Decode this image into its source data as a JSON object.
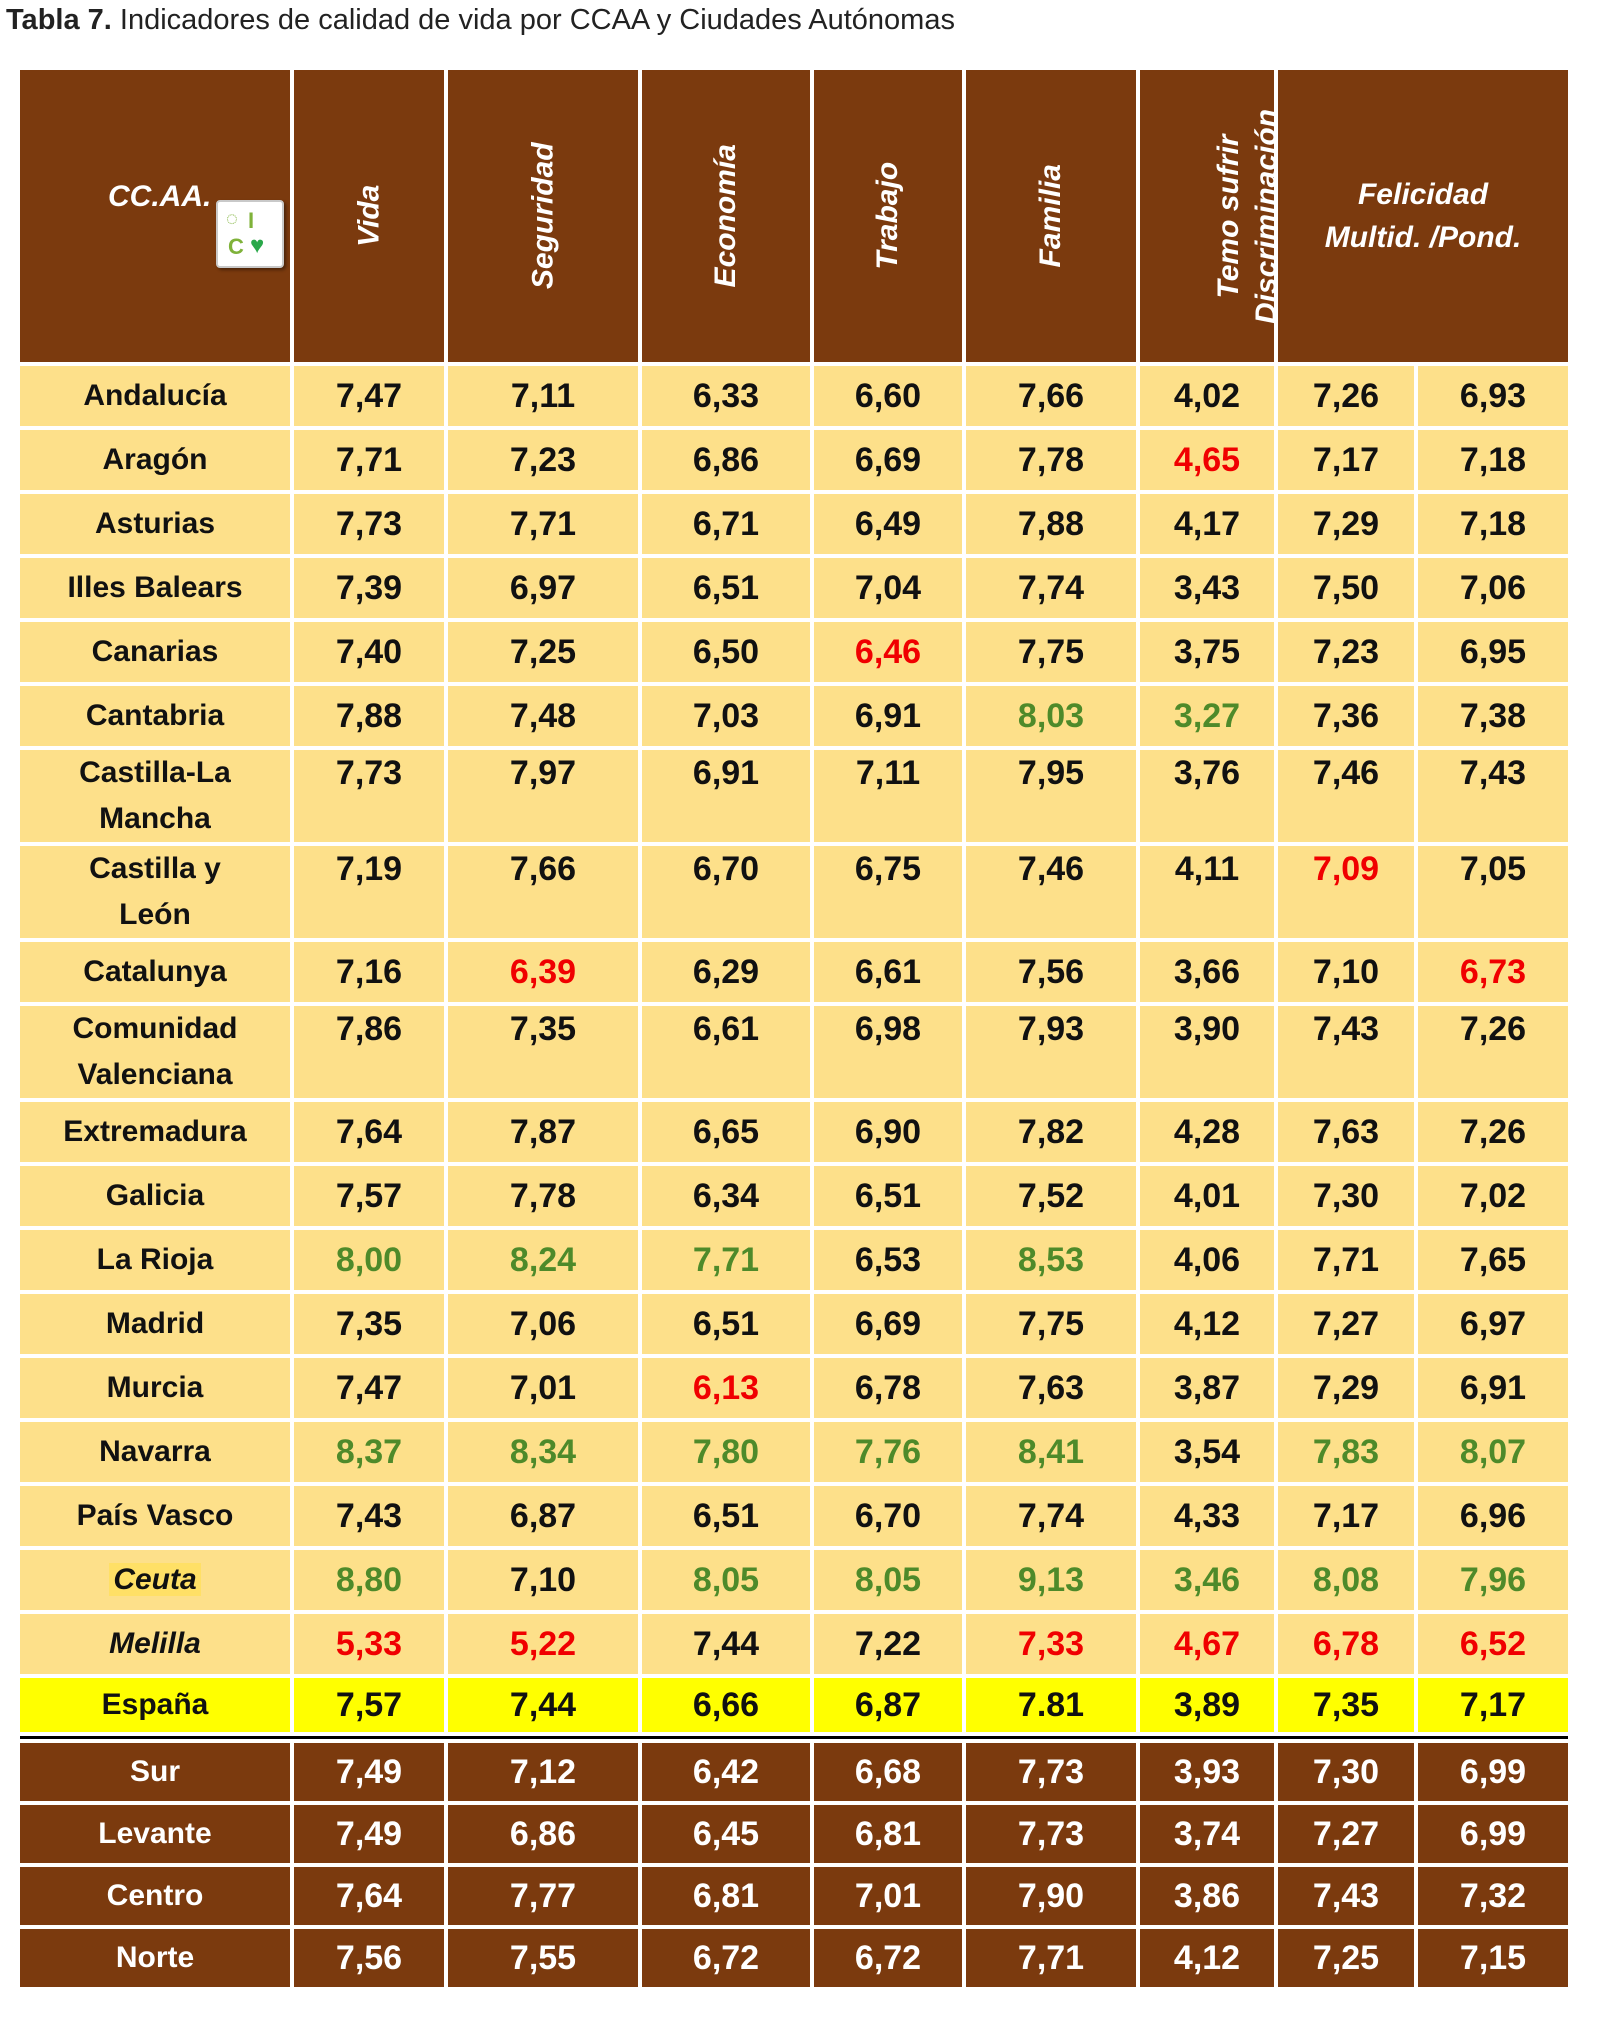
{
  "caption": {
    "bold": "Tabla 7.",
    "text": " Indicadores de calidad de vida por CCAA y Ciudades Autónomas"
  },
  "headers": {
    "ccaa": "CC.AA.",
    "vida": "Vida",
    "seguridad": "Seguridad",
    "economia": "Economía",
    "trabajo": "Trabajo",
    "familia": "Familia",
    "temo_l1": "Temo sufrir",
    "temo_l2": "Discriminación",
    "felicidad_l1": "Felicidad",
    "felicidad_l2": "Multid. /Pond."
  },
  "logo": {
    "l1": "◌",
    "l2": "I",
    "l3": "C",
    "l4": "♥"
  },
  "colors": {
    "header_bg": "#7b3a0e",
    "row_bg": "#fde08a",
    "total_bg": "#ffff00",
    "red": "#f00000",
    "green": "#4e8a2a"
  },
  "rows": [
    {
      "name": "Andalucía",
      "vals": [
        "7,47",
        "7,11",
        "6,33",
        "6,60",
        "7,66",
        "4,02",
        "7,26",
        "6,93"
      ],
      "colors": [
        "",
        "",
        "",
        "",
        "",
        "",
        "",
        ""
      ]
    },
    {
      "name": "Aragón",
      "vals": [
        "7,71",
        "7,23",
        "6,86",
        "6,69",
        "7,78",
        "4,65",
        "7,17",
        "7,18"
      ],
      "colors": [
        "",
        "",
        "",
        "",
        "",
        "red",
        "",
        ""
      ]
    },
    {
      "name": "Asturias",
      "vals": [
        "7,73",
        "7,71",
        "6,71",
        "6,49",
        "7,88",
        "4,17",
        "7,29",
        "7,18"
      ],
      "colors": [
        "",
        "",
        "",
        "",
        "",
        "",
        "",
        ""
      ]
    },
    {
      "name": "Illes Balears",
      "vals": [
        "7,39",
        "6,97",
        "6,51",
        "7,04",
        "7,74",
        "3,43",
        "7,50",
        "7,06"
      ],
      "colors": [
        "",
        "",
        "",
        "",
        "",
        "",
        "",
        ""
      ]
    },
    {
      "name": "Canarias",
      "vals": [
        "7,40",
        "7,25",
        "6,50",
        "6,46",
        "7,75",
        "3,75",
        "7,23",
        "6,95"
      ],
      "colors": [
        "",
        "",
        "",
        "red",
        "",
        "",
        "",
        ""
      ]
    },
    {
      "name": "Cantabria",
      "vals": [
        "7,88",
        "7,48",
        "7,03",
        "6,91",
        "8,03",
        "3,27",
        "7,36",
        "7,38"
      ],
      "colors": [
        "",
        "",
        "",
        "",
        "green",
        "green",
        "",
        ""
      ]
    },
    {
      "name": "Castilla-La Mancha",
      "name_l1": "Castilla-La",
      "name_l2": "Mancha",
      "vals": [
        "7,73",
        "7,97",
        "6,91",
        "7,11",
        "7,95",
        "3,76",
        "7,46",
        "7,43"
      ],
      "colors": [
        "",
        "",
        "",
        "",
        "",
        "",
        "",
        ""
      ]
    },
    {
      "name": "Castilla y León",
      "name_l1": "Castilla y",
      "name_l2": "León",
      "vals": [
        "7,19",
        "7,66",
        "6,70",
        "6,75",
        "7,46",
        "4,11",
        "7,09",
        "7,05"
      ],
      "colors": [
        "",
        "",
        "",
        "",
        "",
        "",
        "red",
        ""
      ]
    },
    {
      "name": "Catalunya",
      "vals": [
        "7,16",
        "6,39",
        "6,29",
        "6,61",
        "7,56",
        "3,66",
        "7,10",
        "6,73"
      ],
      "colors": [
        "",
        "red",
        "",
        "",
        "",
        "",
        "",
        "red"
      ]
    },
    {
      "name": "Comunidad Valenciana",
      "name_l1": "Comunidad",
      "name_l2": "Valenciana",
      "vals": [
        "7,86",
        "7,35",
        "6,61",
        "6,98",
        "7,93",
        "3,90",
        "7,43",
        "7,26"
      ],
      "colors": [
        "",
        "",
        "",
        "",
        "",
        "",
        "",
        ""
      ]
    },
    {
      "name": "Extremadura",
      "vals": [
        "7,64",
        "7,87",
        "6,65",
        "6,90",
        "7,82",
        "4,28",
        "7,63",
        "7,26"
      ],
      "colors": [
        "",
        "",
        "",
        "",
        "",
        "",
        "",
        ""
      ]
    },
    {
      "name": "Galicia",
      "vals": [
        "7,57",
        "7,78",
        "6,34",
        "6,51",
        "7,52",
        "4,01",
        "7,30",
        "7,02"
      ],
      "colors": [
        "",
        "",
        "",
        "",
        "",
        "",
        "",
        ""
      ]
    },
    {
      "name": "La Rioja",
      "vals": [
        "8,00",
        "8,24",
        "7,71",
        "6,53",
        "8,53",
        "4,06",
        "7,71",
        "7,65"
      ],
      "colors": [
        "green",
        "green",
        "green",
        "",
        "green",
        "",
        "",
        ""
      ]
    },
    {
      "name": "Madrid",
      "vals": [
        "7,35",
        "7,06",
        "6,51",
        "6,69",
        "7,75",
        "4,12",
        "7,27",
        "6,97"
      ],
      "colors": [
        "",
        "",
        "",
        "",
        "",
        "",
        "",
        ""
      ]
    },
    {
      "name": "Murcia",
      "vals": [
        "7,47",
        "7,01",
        "6,13",
        "6,78",
        "7,63",
        "3,87",
        "7,29",
        "6,91"
      ],
      "colors": [
        "",
        "",
        "red",
        "",
        "",
        "",
        "",
        ""
      ]
    },
    {
      "name": "Navarra",
      "vals": [
        "8,37",
        "8,34",
        "7,80",
        "7,76",
        "8,41",
        "3,54",
        "7,83",
        "8,07"
      ],
      "colors": [
        "green",
        "green",
        "green",
        "green",
        "green",
        "",
        "green",
        "green"
      ]
    },
    {
      "name": "País Vasco",
      "vals": [
        "7,43",
        "6,87",
        "6,51",
        "6,70",
        "7,74",
        "4,33",
        "7,17",
        "6,96"
      ],
      "colors": [
        "",
        "",
        "",
        "",
        "",
        "",
        "",
        ""
      ]
    },
    {
      "name": "Ceuta",
      "italic": true,
      "highlight": true,
      "vals": [
        "8,80",
        "7,10",
        "8,05",
        "8,05",
        "9,13",
        "3,46",
        "8,08",
        "7,96"
      ],
      "colors": [
        "green",
        "",
        "green",
        "green",
        "green",
        "green",
        "green",
        "green"
      ]
    },
    {
      "name": "Melilla",
      "italic": true,
      "vals": [
        "5,33",
        "5,22",
        "7,44",
        "7,22",
        "7,33",
        "4,67",
        "6,78",
        "6,52"
      ],
      "colors": [
        "red",
        "red",
        "",
        "",
        "red",
        "red",
        "red",
        "red"
      ]
    }
  ],
  "total": {
    "name": "España",
    "vals": [
      "7,57",
      "7,44",
      "6,66",
      "6,87",
      "7.81",
      "3,89",
      "7,35",
      "7,17"
    ]
  },
  "regions": [
    {
      "name": "Sur",
      "vals": [
        "7,49",
        "7,12",
        "6,42",
        "6,68",
        "7,73",
        "3,93",
        "7,30",
        "6,99"
      ]
    },
    {
      "name": "Levante",
      "vals": [
        "7,49",
        "6,86",
        "6,45",
        "6,81",
        "7,73",
        "3,74",
        "7,27",
        "6,99"
      ]
    },
    {
      "name": "Centro",
      "vals": [
        "7,64",
        "7,77",
        "6,81",
        "7,01",
        "7,90",
        "3,86",
        "7,43",
        "7,32"
      ]
    },
    {
      "name": "Norte",
      "vals": [
        "7,56",
        "7,55",
        "6,72",
        "6,72",
        "7,71",
        "4,12",
        "7,25",
        "7,15"
      ]
    }
  ]
}
